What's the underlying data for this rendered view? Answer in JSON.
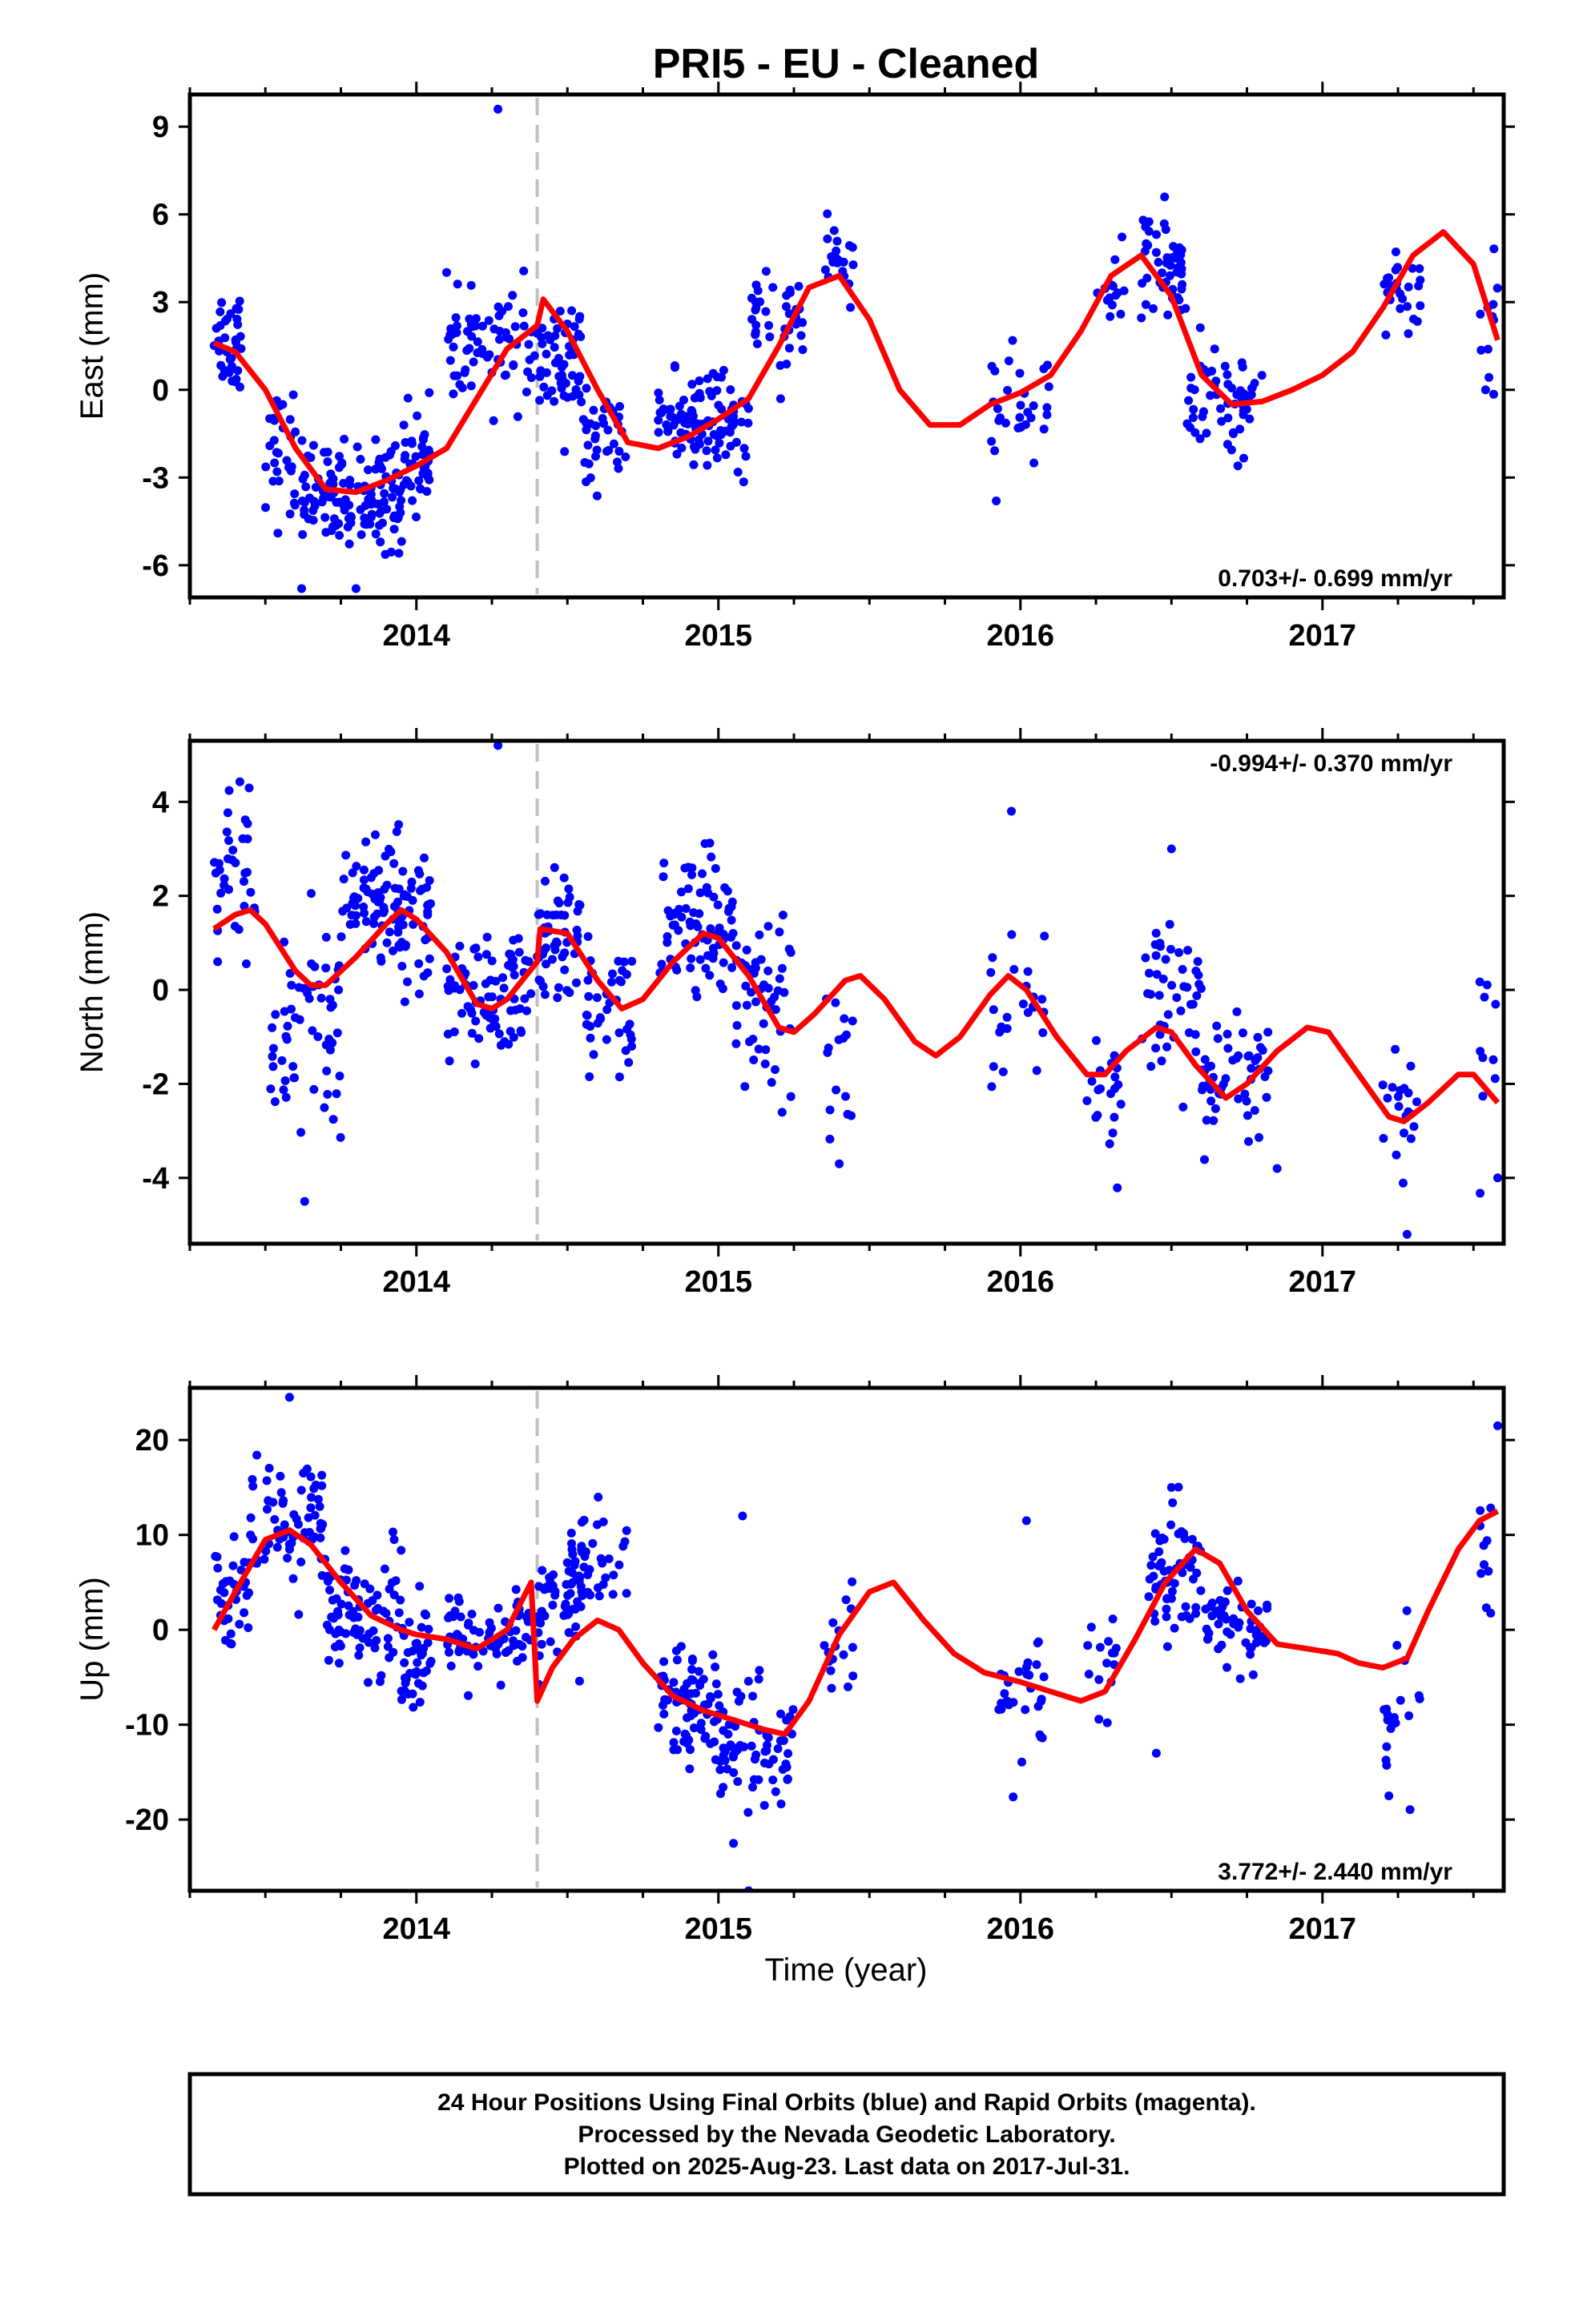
{
  "title": "PRI5  - EU - Cleaned",
  "footer": {
    "line1": "24 Hour Positions Using Final Orbits (blue) and Rapid Orbits (magenta).",
    "line2": "Processed by the Nevada Geodetic Laboratory.",
    "line3": "Plotted on 2025-Aug-23. Last data on 2017-Jul-31."
  },
  "colors": {
    "points": "#0000ff",
    "fit": "#ff0000",
    "break": "#c0c0c0",
    "frame": "#000000"
  },
  "chart_data": [
    {
      "type": "scatter",
      "ylabel": "East (mm)",
      "xlabel": "",
      "xlim": [
        2013.25,
        2017.6
      ],
      "ylim": [
        -7.1,
        10.1
      ],
      "xticks": [
        "2014",
        "2015",
        "2016",
        "2017"
      ],
      "yticks": [
        "-6",
        "-3",
        "0",
        "3",
        "6",
        "9"
      ],
      "rate": "0.703+/- 0.699 mm/yr",
      "rate_position": "bottom-right",
      "break_x": 2014.4,
      "fit": [
        [
          2013.33,
          1.6
        ],
        [
          2013.4,
          1.3
        ],
        [
          2013.5,
          0.0
        ],
        [
          2013.6,
          -2.0
        ],
        [
          2013.7,
          -3.4
        ],
        [
          2013.8,
          -3.5
        ],
        [
          2013.9,
          -3.1
        ],
        [
          2014.0,
          -2.6
        ],
        [
          2014.1,
          -2.0
        ],
        [
          2014.2,
          -0.3
        ],
        [
          2014.3,
          1.4
        ],
        [
          2014.4,
          2.2
        ],
        [
          2014.42,
          3.1
        ],
        [
          2014.5,
          2.0
        ],
        [
          2014.6,
          0.0
        ],
        [
          2014.7,
          -1.8
        ],
        [
          2014.8,
          -2.0
        ],
        [
          2014.9,
          -1.6
        ],
        [
          2015.0,
          -1.0
        ],
        [
          2015.1,
          -0.3
        ],
        [
          2015.2,
          1.5
        ],
        [
          2015.3,
          3.5
        ],
        [
          2015.4,
          3.9
        ],
        [
          2015.5,
          2.4
        ],
        [
          2015.6,
          0.0
        ],
        [
          2015.7,
          -1.2
        ],
        [
          2015.8,
          -1.2
        ],
        [
          2015.9,
          -0.5
        ],
        [
          2016.0,
          -0.1
        ],
        [
          2016.1,
          0.5
        ],
        [
          2016.2,
          2.0
        ],
        [
          2016.3,
          3.9
        ],
        [
          2016.4,
          4.6
        ],
        [
          2016.5,
          3.2
        ],
        [
          2016.6,
          0.5
        ],
        [
          2016.7,
          -0.5
        ],
        [
          2016.8,
          -0.4
        ],
        [
          2016.9,
          0.0
        ],
        [
          2017.0,
          0.5
        ],
        [
          2017.1,
          1.3
        ],
        [
          2017.2,
          2.8
        ],
        [
          2017.3,
          4.6
        ],
        [
          2017.4,
          5.4
        ],
        [
          2017.5,
          4.3
        ],
        [
          2017.58,
          1.7
        ]
      ],
      "clusters": [
        {
          "x": [
            2013.33,
            2013.42
          ],
          "y": 1.8,
          "s": 1.2,
          "n": 35
        },
        {
          "x": [
            2013.5,
            2013.62
          ],
          "y": -2.2,
          "s": 1.4,
          "n": 30
        },
        {
          "x": [
            2013.62,
            2013.95
          ],
          "y": -3.6,
          "s": 1.1,
          "n": 130
        },
        {
          "x": [
            2013.95,
            2014.05
          ],
          "y": -2.4,
          "s": 1.0,
          "n": 40
        },
        {
          "x": [
            2014.1,
            2014.4
          ],
          "y": 1.4,
          "s": 1.2,
          "n": 70
        },
        {
          "x": [
            2014.4,
            2014.55
          ],
          "y": 0.9,
          "s": 1.3,
          "n": 55
        },
        {
          "x": [
            2014.55,
            2014.7
          ],
          "y": -1.7,
          "s": 1.0,
          "n": 35
        },
        {
          "x": [
            2014.8,
            2015.1
          ],
          "y": -1.1,
          "s": 1.0,
          "n": 110
        },
        {
          "x": [
            2015.1,
            2015.28
          ],
          "y": 2.2,
          "s": 1.1,
          "n": 40
        },
        {
          "x": [
            2015.35,
            2015.45
          ],
          "y": 4.3,
          "s": 0.7,
          "n": 20
        },
        {
          "x": [
            2015.9,
            2016.1
          ],
          "y": -0.4,
          "s": 1.1,
          "n": 30
        },
        {
          "x": [
            2016.25,
            2016.35
          ],
          "y": 3.3,
          "s": 1.0,
          "n": 15
        },
        {
          "x": [
            2016.4,
            2016.55
          ],
          "y": 4.2,
          "s": 1.2,
          "n": 50
        },
        {
          "x": [
            2016.55,
            2016.8
          ],
          "y": -0.4,
          "s": 1.0,
          "n": 60
        },
        {
          "x": [
            2017.2,
            2017.33
          ],
          "y": 3.4,
          "s": 1.1,
          "n": 25
        },
        {
          "x": [
            2017.52,
            2017.58
          ],
          "y": 2.2,
          "s": 1.4,
          "n": 12
        }
      ],
      "outliers": [
        [
          2014.27,
          9.6
        ],
        [
          2013.62,
          -6.8
        ],
        [
          2013.8,
          -6.8
        ],
        [
          2015.92,
          -3.8
        ],
        [
          2016.72,
          -2.6
        ]
      ]
    },
    {
      "type": "scatter",
      "ylabel": "North (mm)",
      "xlabel": "",
      "xlim": [
        2013.25,
        2017.6
      ],
      "ylim": [
        -5.4,
        5.3
      ],
      "xticks": [
        "2014",
        "2015",
        "2016",
        "2017"
      ],
      "yticks": [
        "-4",
        "-2",
        "0",
        "2",
        "4"
      ],
      "rate": "-0.994+/- 0.370 mm/yr",
      "rate_position": "top-right",
      "break_x": 2014.4,
      "fit": [
        [
          2013.33,
          1.3
        ],
        [
          2013.4,
          1.6
        ],
        [
          2013.45,
          1.7
        ],
        [
          2013.5,
          1.4
        ],
        [
          2013.6,
          0.4
        ],
        [
          2013.65,
          0.1
        ],
        [
          2013.7,
          0.1
        ],
        [
          2013.8,
          0.7
        ],
        [
          2013.9,
          1.4
        ],
        [
          2013.95,
          1.7
        ],
        [
          2014.0,
          1.5
        ],
        [
          2014.1,
          0.8
        ],
        [
          2014.2,
          -0.3
        ],
        [
          2014.25,
          -0.4
        ],
        [
          2014.3,
          -0.2
        ],
        [
          2014.4,
          0.6
        ],
        [
          2014.41,
          1.3
        ],
        [
          2014.5,
          1.2
        ],
        [
          2014.6,
          0.2
        ],
        [
          2014.68,
          -0.4
        ],
        [
          2014.75,
          -0.2
        ],
        [
          2014.85,
          0.6
        ],
        [
          2014.95,
          1.2
        ],
        [
          2015.0,
          1.1
        ],
        [
          2015.1,
          0.3
        ],
        [
          2015.2,
          -0.8
        ],
        [
          2015.25,
          -0.9
        ],
        [
          2015.32,
          -0.5
        ],
        [
          2015.42,
          0.2
        ],
        [
          2015.47,
          0.3
        ],
        [
          2015.55,
          -0.2
        ],
        [
          2015.65,
          -1.1
        ],
        [
          2015.72,
          -1.4
        ],
        [
          2015.8,
          -1.0
        ],
        [
          2015.9,
          -0.1
        ],
        [
          2015.96,
          0.3
        ],
        [
          2016.02,
          0.0
        ],
        [
          2016.12,
          -1.0
        ],
        [
          2016.22,
          -1.8
        ],
        [
          2016.28,
          -1.8
        ],
        [
          2016.35,
          -1.3
        ],
        [
          2016.45,
          -0.8
        ],
        [
          2016.5,
          -0.9
        ],
        [
          2016.58,
          -1.6
        ],
        [
          2016.68,
          -2.3
        ],
        [
          2016.75,
          -2.0
        ],
        [
          2016.85,
          -1.3
        ],
        [
          2016.95,
          -0.8
        ],
        [
          2017.02,
          -0.9
        ],
        [
          2017.12,
          -1.8
        ],
        [
          2017.22,
          -2.7
        ],
        [
          2017.27,
          -2.8
        ],
        [
          2017.35,
          -2.4
        ],
        [
          2017.45,
          -1.8
        ],
        [
          2017.5,
          -1.8
        ],
        [
          2017.58,
          -2.4
        ]
      ],
      "clusters": [
        {
          "x": [
            2013.33,
            2013.47
          ],
          "y": 2.3,
          "s": 1.2,
          "n": 35
        },
        {
          "x": [
            2013.5,
            2013.75
          ],
          "y": -0.8,
          "s": 1.4,
          "n": 60
        },
        {
          "x": [
            2013.75,
            2014.05
          ],
          "y": 1.8,
          "s": 0.9,
          "n": 110
        },
        {
          "x": [
            2014.1,
            2014.38
          ],
          "y": -0.2,
          "s": 0.9,
          "n": 85
        },
        {
          "x": [
            2014.4,
            2014.55
          ],
          "y": 1.0,
          "s": 0.9,
          "n": 55
        },
        {
          "x": [
            2014.55,
            2014.72
          ],
          "y": -0.4,
          "s": 0.9,
          "n": 40
        },
        {
          "x": [
            2014.8,
            2015.05
          ],
          "y": 1.3,
          "s": 1.0,
          "n": 80
        },
        {
          "x": [
            2015.05,
            2015.25
          ],
          "y": -0.3,
          "s": 1.1,
          "n": 50
        },
        {
          "x": [
            2015.35,
            2015.45
          ],
          "y": -1.5,
          "s": 1.3,
          "n": 16
        },
        {
          "x": [
            2015.9,
            2016.08
          ],
          "y": -0.4,
          "s": 0.9,
          "n": 25
        },
        {
          "x": [
            2016.22,
            2016.35
          ],
          "y": -2.3,
          "s": 1.0,
          "n": 20
        },
        {
          "x": [
            2016.4,
            2016.6
          ],
          "y": -0.4,
          "s": 1.0,
          "n": 45
        },
        {
          "x": [
            2016.6,
            2016.82
          ],
          "y": -1.8,
          "s": 0.8,
          "n": 50
        },
        {
          "x": [
            2017.2,
            2017.33
          ],
          "y": -2.5,
          "s": 1.0,
          "n": 20
        },
        {
          "x": [
            2017.52,
            2017.58
          ],
          "y": -1.4,
          "s": 1.1,
          "n": 10
        }
      ],
      "outliers": [
        [
          2014.27,
          5.2
        ],
        [
          2013.63,
          -4.5
        ],
        [
          2015.97,
          3.8
        ],
        [
          2016.5,
          3.0
        ],
        [
          2017.28,
          -5.2
        ],
        [
          2016.85,
          -3.8
        ],
        [
          2017.58,
          -4.0
        ]
      ]
    },
    {
      "type": "scatter",
      "ylabel": "Up (mm)",
      "xlabel": "Time (year)",
      "xlim": [
        2013.25,
        2017.6
      ],
      "ylim": [
        -27.5,
        25.5
      ],
      "xticks": [
        "2014",
        "2015",
        "2016",
        "2017"
      ],
      "yticks": [
        "-20",
        "-10",
        "0",
        "10",
        "20"
      ],
      "rate": "3.772+/- 2.440 mm/yr",
      "rate_position": "bottom-right",
      "break_x": 2014.4,
      "fit": [
        [
          2013.33,
          0.0
        ],
        [
          2013.4,
          4.0
        ],
        [
          2013.5,
          9.5
        ],
        [
          2013.58,
          10.5
        ],
        [
          2013.65,
          9.0
        ],
        [
          2013.75,
          5.0
        ],
        [
          2013.85,
          1.5
        ],
        [
          2013.95,
          0.0
        ],
        [
          2014.0,
          -0.5
        ],
        [
          2014.1,
          -1.0
        ],
        [
          2014.2,
          -2.0
        ],
        [
          2014.3,
          0.0
        ],
        [
          2014.38,
          5.0
        ],
        [
          2014.4,
          -7.5
        ],
        [
          2014.45,
          -4.0
        ],
        [
          2014.52,
          -1.0
        ],
        [
          2014.6,
          1.0
        ],
        [
          2014.67,
          0.0
        ],
        [
          2014.75,
          -3.5
        ],
        [
          2014.85,
          -7.0
        ],
        [
          2014.95,
          -8.5
        ],
        [
          2015.05,
          -9.5
        ],
        [
          2015.15,
          -10.5
        ],
        [
          2015.22,
          -11.0
        ],
        [
          2015.3,
          -7.5
        ],
        [
          2015.4,
          -0.5
        ],
        [
          2015.5,
          4.0
        ],
        [
          2015.58,
          5.0
        ],
        [
          2015.68,
          1.0
        ],
        [
          2015.78,
          -2.5
        ],
        [
          2015.88,
          -4.5
        ],
        [
          2016.0,
          -5.5
        ],
        [
          2016.1,
          -6.5
        ],
        [
          2016.2,
          -7.5
        ],
        [
          2016.28,
          -6.5
        ],
        [
          2016.38,
          -1.0
        ],
        [
          2016.48,
          5.0
        ],
        [
          2016.58,
          8.5
        ],
        [
          2016.66,
          7.0
        ],
        [
          2016.75,
          2.0
        ],
        [
          2016.85,
          -1.5
        ],
        [
          2016.95,
          -2.0
        ],
        [
          2017.05,
          -2.5
        ],
        [
          2017.12,
          -3.5
        ],
        [
          2017.2,
          -4.0
        ],
        [
          2017.28,
          -3.0
        ],
        [
          2017.35,
          2.0
        ],
        [
          2017.45,
          8.5
        ],
        [
          2017.52,
          11.5
        ],
        [
          2017.58,
          12.5
        ]
      ],
      "clusters": [
        {
          "x": [
            2013.33,
            2013.45
          ],
          "y": 4.5,
          "s": 3.5,
          "n": 35
        },
        {
          "x": [
            2013.45,
            2013.7
          ],
          "y": 11.0,
          "s": 4.0,
          "n": 70
        },
        {
          "x": [
            2013.7,
            2013.95
          ],
          "y": 2.0,
          "s": 4.0,
          "n": 80
        },
        {
          "x": [
            2013.95,
            2014.05
          ],
          "y": -3.0,
          "s": 3.5,
          "n": 40
        },
        {
          "x": [
            2014.1,
            2014.38
          ],
          "y": -1.0,
          "s": 3.0,
          "n": 70
        },
        {
          "x": [
            2014.4,
            2014.55
          ],
          "y": 2.0,
          "s": 4.0,
          "n": 50
        },
        {
          "x": [
            2014.5,
            2014.7
          ],
          "y": 7.0,
          "s": 3.5,
          "n": 45
        },
        {
          "x": [
            2014.8,
            2015.0
          ],
          "y": -8.0,
          "s": 4.0,
          "n": 80
        },
        {
          "x": [
            2015.0,
            2015.25
          ],
          "y": -13.0,
          "s": 4.5,
          "n": 70
        },
        {
          "x": [
            2015.35,
            2015.45
          ],
          "y": -2.0,
          "s": 3.5,
          "n": 16
        },
        {
          "x": [
            2015.9,
            2016.08
          ],
          "y": -8.0,
          "s": 4.0,
          "n": 30
        },
        {
          "x": [
            2016.22,
            2016.32
          ],
          "y": -3.0,
          "s": 4.0,
          "n": 15
        },
        {
          "x": [
            2016.42,
            2016.6
          ],
          "y": 5.0,
          "s": 4.0,
          "n": 60
        },
        {
          "x": [
            2016.6,
            2016.82
          ],
          "y": 0.0,
          "s": 3.5,
          "n": 50
        },
        {
          "x": [
            2017.2,
            2017.33
          ],
          "y": -7.0,
          "s": 4.5,
          "n": 20
        },
        {
          "x": [
            2017.52,
            2017.58
          ],
          "y": 7.0,
          "s": 4.0,
          "n": 10
        }
      ],
      "outliers": [
        [
          2013.58,
          24.5
        ],
        [
          2015.1,
          -27.5
        ],
        [
          2015.08,
          12.0
        ],
        [
          2016.02,
          11.5
        ],
        [
          2017.58,
          21.5
        ],
        [
          2015.05,
          -22.5
        ],
        [
          2016.5,
          15.0
        ],
        [
          2016.45,
          -13.0
        ],
        [
          2017.22,
          -17.5
        ]
      ]
    }
  ]
}
